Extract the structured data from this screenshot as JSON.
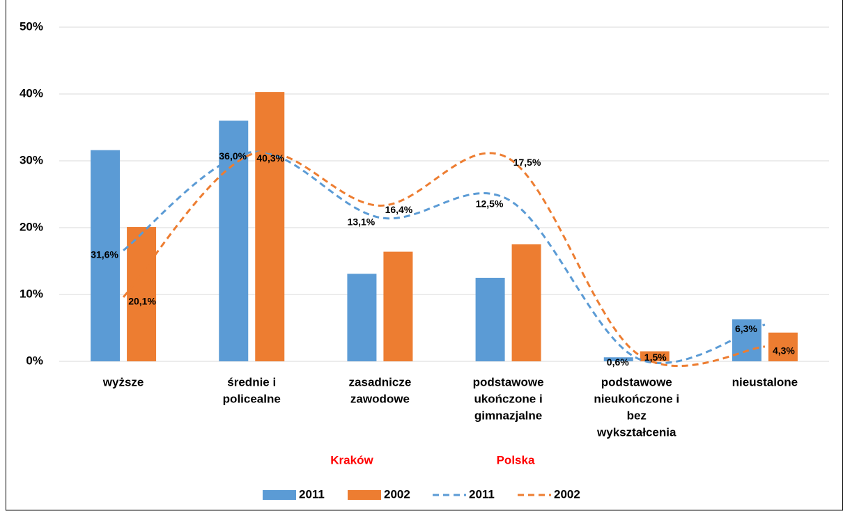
{
  "chart_data": {
    "type": "bar",
    "categories": [
      [
        "wyższe"
      ],
      [
        "średnie i",
        "policealne"
      ],
      [
        "zasadnicze",
        "zawodowe"
      ],
      [
        "podstawowe",
        "ukończone i",
        "gimnazjalne"
      ],
      [
        "podstawowe",
        "nieukończone i",
        "bez",
        "wykształcenia"
      ],
      [
        "nieustalone"
      ]
    ],
    "series": [
      {
        "name": "2011",
        "type": "bar",
        "color": "#5b9bd5",
        "values": [
          31.6,
          36.0,
          13.1,
          12.5,
          0.6,
          6.3
        ],
        "value_labels": [
          "31,6%",
          "36,0%",
          "13,1%",
          "12,5%",
          "0,6%",
          "6,3%"
        ]
      },
      {
        "name": "2002",
        "type": "bar",
        "color": "#ed7d31",
        "values": [
          20.1,
          40.3,
          16.4,
          17.5,
          1.5,
          4.3
        ],
        "value_labels": [
          "20,1%",
          "40,3%",
          "16,4%",
          "17,5%",
          "1,5%",
          "4,3%"
        ]
      },
      {
        "name": "2011",
        "type": "line",
        "line_style": "dashed",
        "color": "#5b9bd5",
        "values": [
          16.6,
          31.3,
          21.5,
          24.2,
          0.5,
          5.5
        ]
      },
      {
        "name": "2002",
        "type": "line",
        "line_style": "dashed",
        "color": "#ed7d31",
        "values": [
          9.6,
          31.0,
          23.3,
          30.4,
          1.2,
          2.2
        ]
      }
    ],
    "annotations": [
      {
        "text": "Kraków",
        "color": "#ff0000"
      },
      {
        "text": "Polska",
        "color": "#ff0000"
      }
    ],
    "ylim": [
      0,
      50
    ],
    "yticks": [
      {
        "value": 0,
        "label": "0%"
      },
      {
        "value": 10,
        "label": "10%"
      },
      {
        "value": 20,
        "label": "20%"
      },
      {
        "value": 30,
        "label": "30%"
      },
      {
        "value": 40,
        "label": "40%"
      },
      {
        "value": 50,
        "label": "50%"
      }
    ],
    "grid": true,
    "legend": "bottom"
  }
}
